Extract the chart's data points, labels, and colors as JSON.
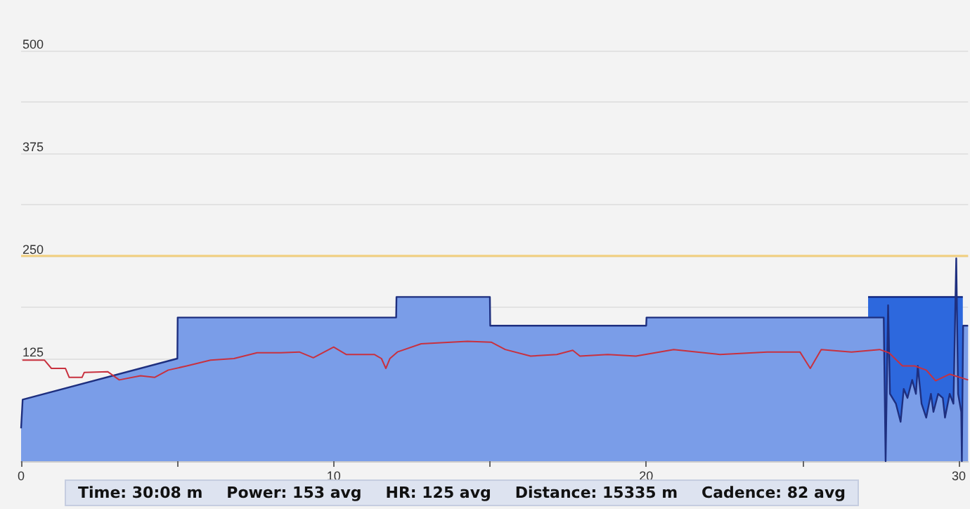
{
  "chart_data": {
    "type": "area",
    "xlim": [
      0,
      30.3
    ],
    "xticks": [
      0,
      {
        "value": 5,
        "label": null
      },
      10,
      {
        "value": 15,
        "label": null
      },
      20,
      {
        "value": 25,
        "label": null
      },
      30
    ],
    "ylim": [
      0,
      500
    ],
    "yticks": [
      {
        "value": 0,
        "label": null
      },
      125,
      {
        "value": 187.5,
        "label": null
      },
      250,
      {
        "value": 312.5,
        "label": null
      },
      375,
      {
        "value": 437.5,
        "label": null
      },
      500
    ],
    "grid": "y",
    "series": [
      {
        "color": "#2d68dd",
        "x": [
          27.1,
          30.13
        ],
        "values": [
          200,
          200
        ]
      },
      {
        "color": "#7a9de8",
        "x": [
          0,
          0.05,
          5,
          5.01,
          12,
          12.01,
          15,
          15.01,
          20,
          20.01,
          27.6,
          27.66,
          27.74,
          27.8,
          27.99,
          28.14,
          28.24,
          28.36,
          28.51,
          28.63,
          28.69,
          28.81,
          28.96,
          29.11,
          29.19,
          29.34,
          29.49,
          29.56,
          29.71,
          29.83,
          29.92,
          29.98,
          30.08,
          30.1,
          30.14,
          30.3
        ],
        "values": [
          40,
          75,
          125,
          175,
          175,
          200,
          200,
          165,
          165,
          175,
          175,
          0,
          190,
          82,
          70,
          48,
          88,
          77,
          99,
          82,
          116,
          70,
          53,
          82,
          60,
          82,
          77,
          53,
          82,
          70,
          247,
          82,
          60,
          0,
          165,
          165
        ]
      },
      {
        "type": "line",
        "color": "#c8313f",
        "x": [
          0.04,
          0.75,
          0.97,
          1.42,
          1.54,
          1.95,
          2.02,
          2.77,
          3.14,
          3.82,
          4.27,
          4.71,
          5.3,
          6.06,
          6.81,
          7.55,
          8.31,
          8.9,
          9.35,
          10.0,
          10.4,
          11.3,
          11.53,
          11.67,
          11.8,
          12.04,
          12.8,
          14.28,
          15.04,
          15.49,
          16.3,
          17.14,
          17.65,
          17.88,
          18.77,
          19.67,
          20.88,
          22.36,
          23.87,
          24.92,
          25.25,
          25.6,
          26.57,
          27.47,
          27.77,
          28.2,
          28.59,
          28.96,
          29.26,
          29.71,
          30.3
        ],
        "values": [
          123,
          123,
          113,
          113,
          102,
          102,
          108,
          109,
          99,
          104,
          102,
          111,
          116,
          123,
          125,
          132,
          132,
          133,
          126,
          139,
          130,
          130,
          125,
          113,
          125,
          133,
          143,
          146,
          145,
          136,
          128,
          130,
          135,
          128,
          130,
          128,
          136,
          130,
          133,
          133,
          113,
          136,
          133,
          136,
          132,
          116,
          116,
          111,
          98,
          106,
          99
        ]
      }
    ],
    "ref_lines": [
      {
        "axis": "y",
        "value": 250,
        "color": "#f2cf7e"
      }
    ],
    "annotations": [
      "Time: 30:08 m",
      "Power: 153 avg",
      "HR: 125 avg",
      "Distance: 15335 m",
      "Cadence: 82 avg"
    ]
  }
}
